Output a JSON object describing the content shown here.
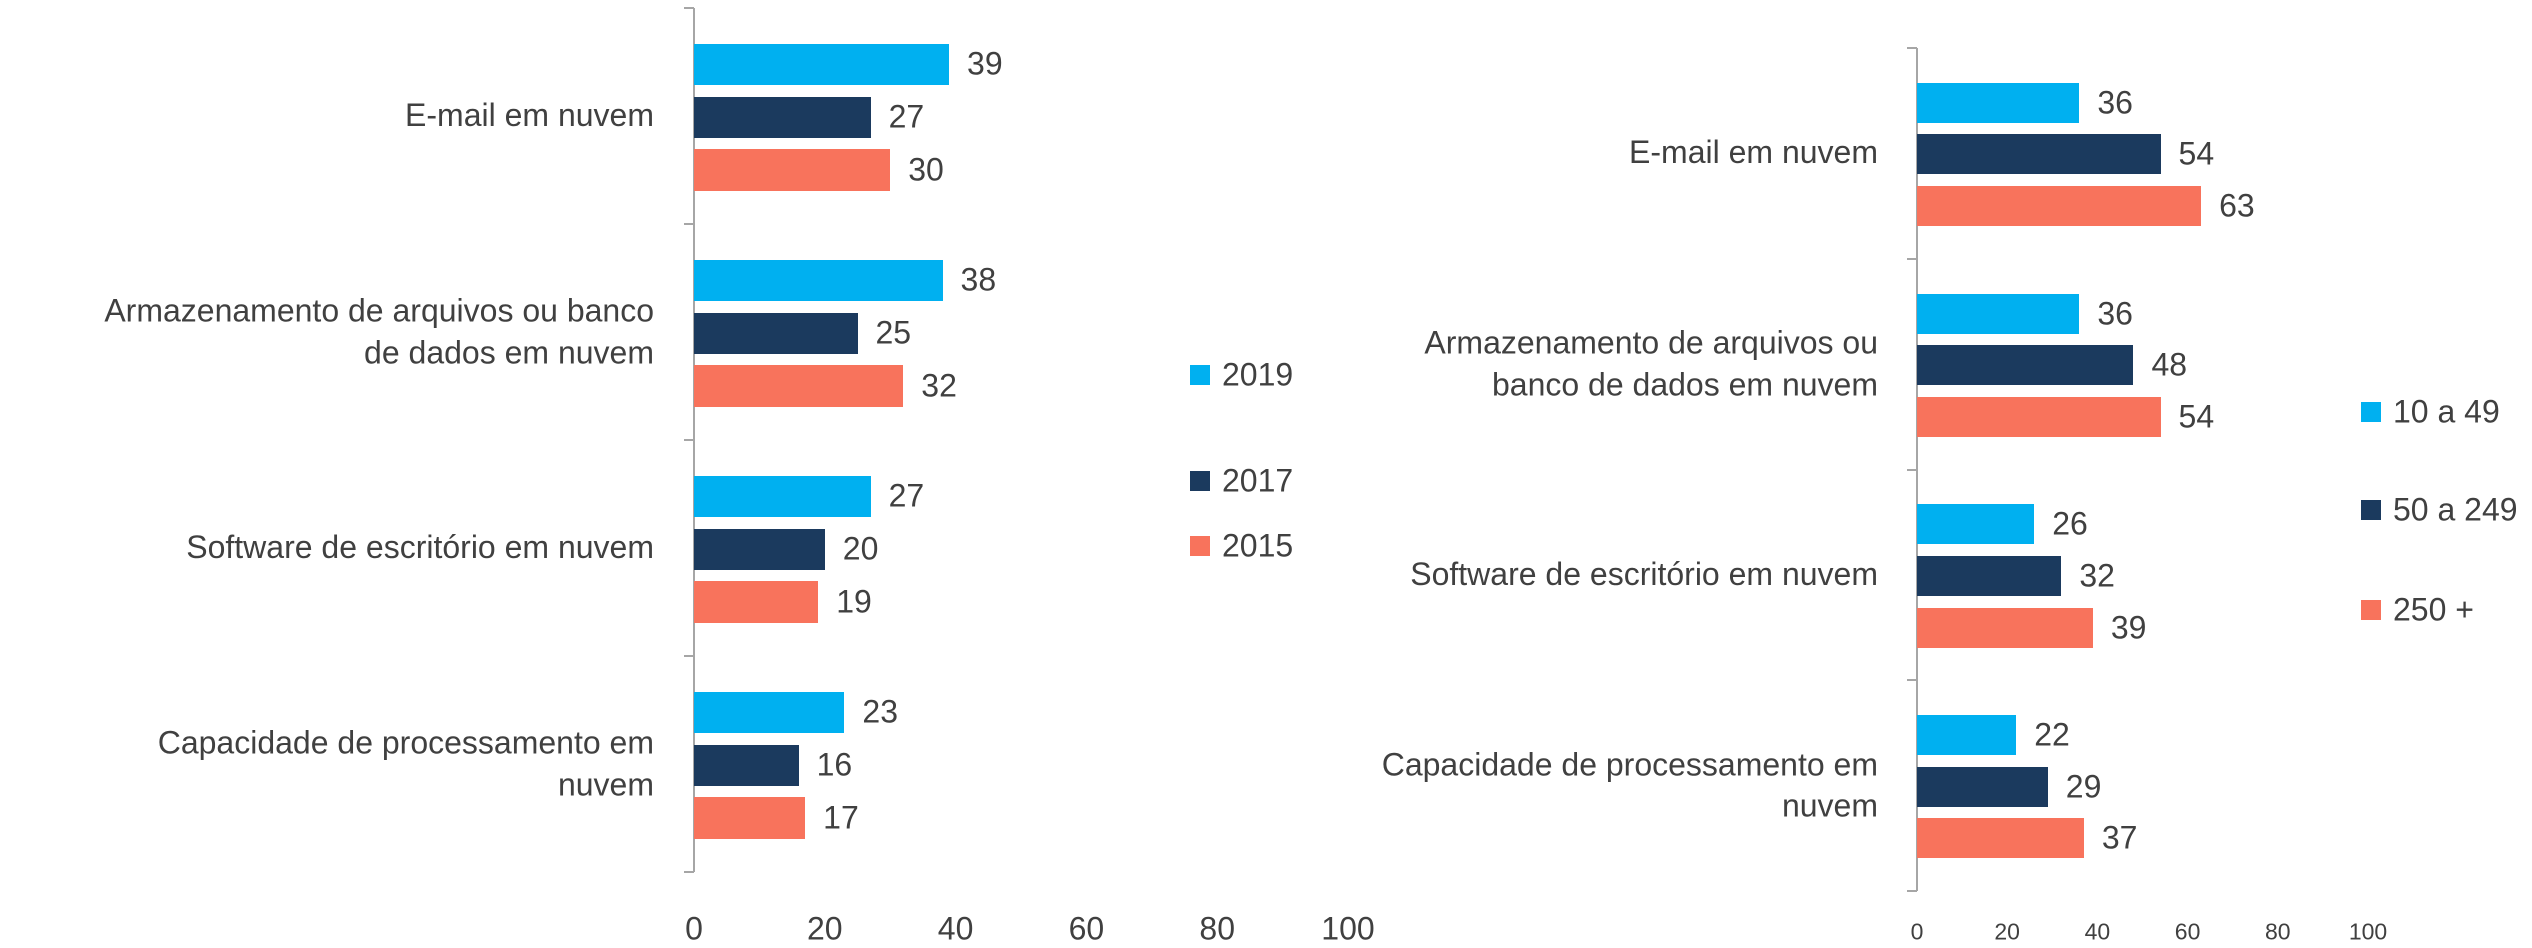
{
  "chart_data": [
    {
      "type": "bar",
      "orientation": "horizontal",
      "categories": [
        "E-mail em nuvem",
        "Armazenamento de arquivos ou banco de dados em nuvem",
        "Software de escritório em nuvem",
        "Capacidade de processamento em nuvem"
      ],
      "series": [
        {
          "name": "2019",
          "color": "#00b0f0",
          "values": [
            39,
            38,
            27,
            23
          ]
        },
        {
          "name": "2017",
          "color": "#1b3a5e",
          "values": [
            27,
            25,
            20,
            16
          ]
        },
        {
          "name": "2015",
          "color": "#f8735c",
          "values": [
            30,
            32,
            19,
            17
          ]
        }
      ],
      "xlim": [
        0,
        100
      ],
      "xticks": [
        0,
        20,
        40,
        60,
        80,
        100
      ],
      "legend": "right"
    },
    {
      "type": "bar",
      "orientation": "horizontal",
      "categories": [
        "E-mail em nuvem",
        "Armazenamento de arquivos ou banco de dados em nuvem",
        "Software de escritório em nuvem",
        "Capacidade de processamento em nuvem"
      ],
      "series": [
        {
          "name": "10 a 49",
          "color": "#00b0f0",
          "values": [
            36,
            36,
            26,
            22
          ]
        },
        {
          "name": "50 a 249",
          "color": "#1b3a5e",
          "values": [
            54,
            48,
            32,
            29
          ]
        },
        {
          "name": "250 +",
          "color": "#f8735c",
          "values": [
            63,
            54,
            39,
            37
          ]
        }
      ],
      "xlim": [
        0,
        100
      ],
      "xticks": [
        0,
        20,
        40,
        60,
        80,
        100
      ],
      "legend": "right"
    }
  ]
}
